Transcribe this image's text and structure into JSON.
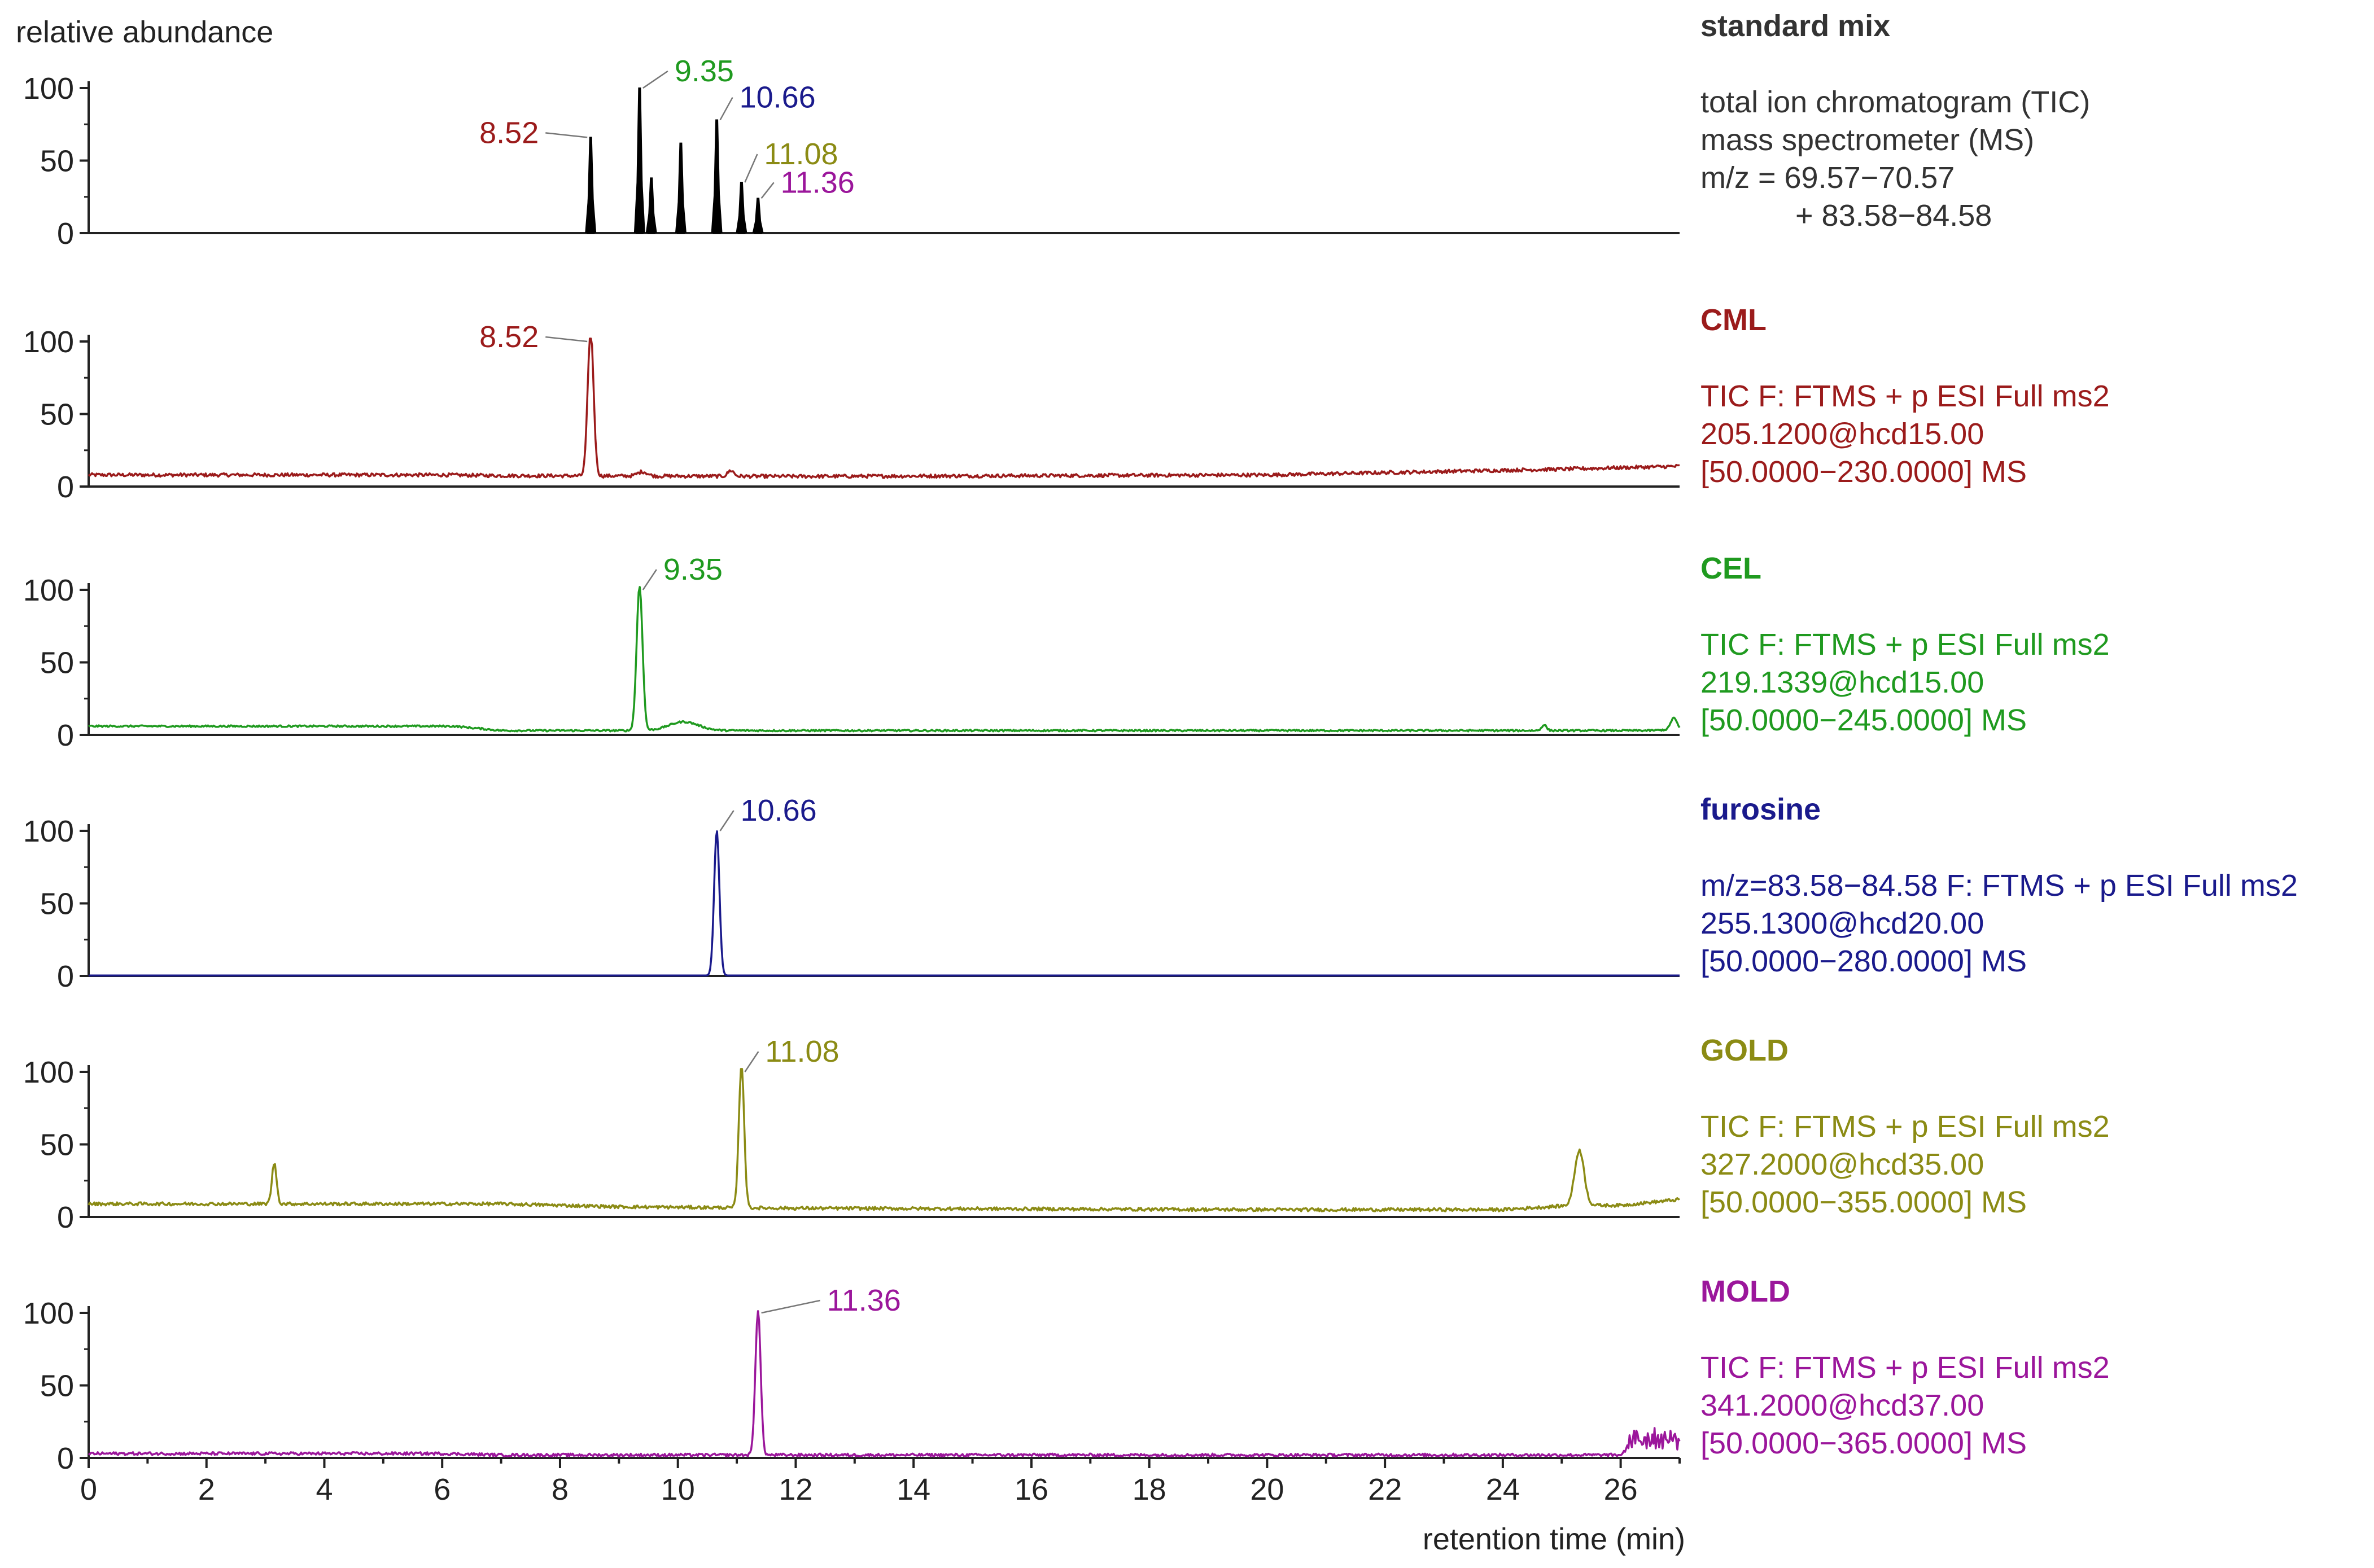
{
  "chart_data": {
    "type": "line",
    "ylabel": "relative abundance",
    "xlabel": "retention time (min)",
    "xlim": [
      0,
      27
    ],
    "ylim": [
      0,
      100
    ],
    "x_ticks": [
      "0",
      "2",
      "4",
      "6",
      "8",
      "10",
      "12",
      "14",
      "16",
      "18",
      "20",
      "22",
      "24",
      "26"
    ],
    "y_ticks": [
      "0",
      "50",
      "100"
    ],
    "panels": [
      {
        "name": "standard mix",
        "color": "#000000",
        "title_color": "#333333",
        "desc_color": "#333333",
        "style": "stick",
        "info": [
          "total ion chromatogram (TIC)",
          "mass spectrometer (MS)",
          "m/z = 69.57−70.57",
          "+ 83.58−84.58"
        ],
        "baseline": 0,
        "peaks": [
          {
            "x": 8.52,
            "y": 66
          },
          {
            "x": 9.35,
            "y": 100
          },
          {
            "x": 9.55,
            "y": 38
          },
          {
            "x": 10.05,
            "y": 62
          },
          {
            "x": 10.66,
            "y": 78
          },
          {
            "x": 11.08,
            "y": 35
          },
          {
            "x": 11.36,
            "y": 24
          }
        ],
        "labels": [
          {
            "text": "8.52",
            "x": 8.52,
            "y": 66,
            "color": "#9b1b1b"
          },
          {
            "text": "9.35",
            "x": 9.35,
            "y": 100,
            "color": "#1f9a1f"
          },
          {
            "text": "10.66",
            "x": 10.66,
            "y": 78,
            "color": "#1a1a8c"
          },
          {
            "text": "11.08",
            "x": 11.08,
            "y": 35,
            "color": "#8b8b14"
          },
          {
            "text": "11.36",
            "x": 11.36,
            "y": 24,
            "color": "#9b169b"
          }
        ]
      },
      {
        "name": "CML",
        "color": "#9b1b1b",
        "info": [
          "TIC F: FTMS + p ESI Full ms2",
          "205.1200@hcd15.00",
          "[50.0000−230.0000]  MS"
        ],
        "baseline": [
          [
            0,
            8
          ],
          [
            6,
            8
          ],
          [
            7,
            7.5
          ],
          [
            12,
            7
          ],
          [
            20,
            8
          ],
          [
            25,
            12
          ],
          [
            27,
            14
          ]
        ],
        "noise": 1.2,
        "peaks": [
          {
            "x": 8.52,
            "y": 100,
            "w": 0.05
          },
          {
            "x": 9.4,
            "y": 3,
            "w": 0.08
          },
          {
            "x": 10.9,
            "y": 4,
            "w": 0.05
          }
        ],
        "labels": [
          {
            "text": "8.52",
            "x": 8.52,
            "y": 100,
            "color": "#9b1b1b"
          }
        ]
      },
      {
        "name": "CEL",
        "color": "#1f9a1f",
        "info": [
          "TIC F: FTMS + p ESI Full ms2",
          "219.1339@hcd15.00",
          "[50.0000−245.0000]  MS"
        ],
        "baseline": [
          [
            0,
            6
          ],
          [
            6.2,
            6
          ],
          [
            7,
            3
          ],
          [
            9,
            3
          ],
          [
            12,
            3
          ],
          [
            20,
            3
          ],
          [
            26.5,
            3
          ],
          [
            27,
            4
          ]
        ],
        "noise": 0.6,
        "peaks": [
          {
            "x": 9.35,
            "y": 100,
            "w": 0.05
          },
          {
            "x": 10.1,
            "y": 6,
            "w": 0.25
          },
          {
            "x": 24.7,
            "y": 4,
            "w": 0.04
          },
          {
            "x": 26.9,
            "y": 8,
            "w": 0.05
          }
        ],
        "labels": [
          {
            "text": "9.35",
            "x": 9.35,
            "y": 100,
            "color": "#1f9a1f"
          }
        ]
      },
      {
        "name": "furosine",
        "color": "#1a1a8c",
        "info": [
          "m/z=83.58−84.58 F: FTMS + p ESI Full ms2",
          "255.1300@hcd20.00",
          "[50.0000−280.0000]  MS"
        ],
        "baseline": [
          [
            0,
            0.3
          ],
          [
            27,
            0.3
          ]
        ],
        "noise": 0.0,
        "peaks": [
          {
            "x": 10.66,
            "y": 100,
            "w": 0.045
          }
        ],
        "labels": [
          {
            "text": "10.66",
            "x": 10.66,
            "y": 100,
            "color": "#1a1a8c"
          }
        ]
      },
      {
        "name": "GOLD",
        "color": "#8b8b14",
        "info": [
          "TIC F: FTMS + p ESI Full ms2",
          "327.2000@hcd35.00",
          "[50.0000−355.0000]  MS"
        ],
        "baseline": [
          [
            0,
            9
          ],
          [
            7,
            9
          ],
          [
            9,
            7
          ],
          [
            12,
            6
          ],
          [
            20,
            5
          ],
          [
            24,
            5
          ],
          [
            25.2,
            8
          ],
          [
            26,
            8
          ],
          [
            27,
            12
          ]
        ],
        "noise": 1.1,
        "peaks": [
          {
            "x": 3.15,
            "y": 28,
            "w": 0.04
          },
          {
            "x": 11.08,
            "y": 100,
            "w": 0.045
          },
          {
            "x": 25.3,
            "y": 38,
            "w": 0.08
          }
        ],
        "labels": [
          {
            "text": "11.08",
            "x": 11.08,
            "y": 100,
            "color": "#8b8b14"
          }
        ]
      },
      {
        "name": "MOLD",
        "color": "#9b169b",
        "info": [
          "TIC F: FTMS + p ESI Full ms2",
          "341.2000@hcd37.00",
          "[50.0000−365.0000]  MS"
        ],
        "baseline": [
          [
            0,
            3
          ],
          [
            6,
            3
          ],
          [
            7,
            2
          ],
          [
            20,
            2
          ],
          [
            26,
            2
          ],
          [
            26.1,
            6
          ],
          [
            27,
            6
          ]
        ],
        "noise": 1.0,
        "burst": {
          "from": 26.1,
          "to": 27,
          "amp": 14
        },
        "peaks": [
          {
            "x": 11.36,
            "y": 100,
            "w": 0.045
          }
        ],
        "labels": [
          {
            "text": "11.36",
            "x": 11.36,
            "y": 100,
            "color": "#9b169b"
          }
        ]
      }
    ]
  }
}
